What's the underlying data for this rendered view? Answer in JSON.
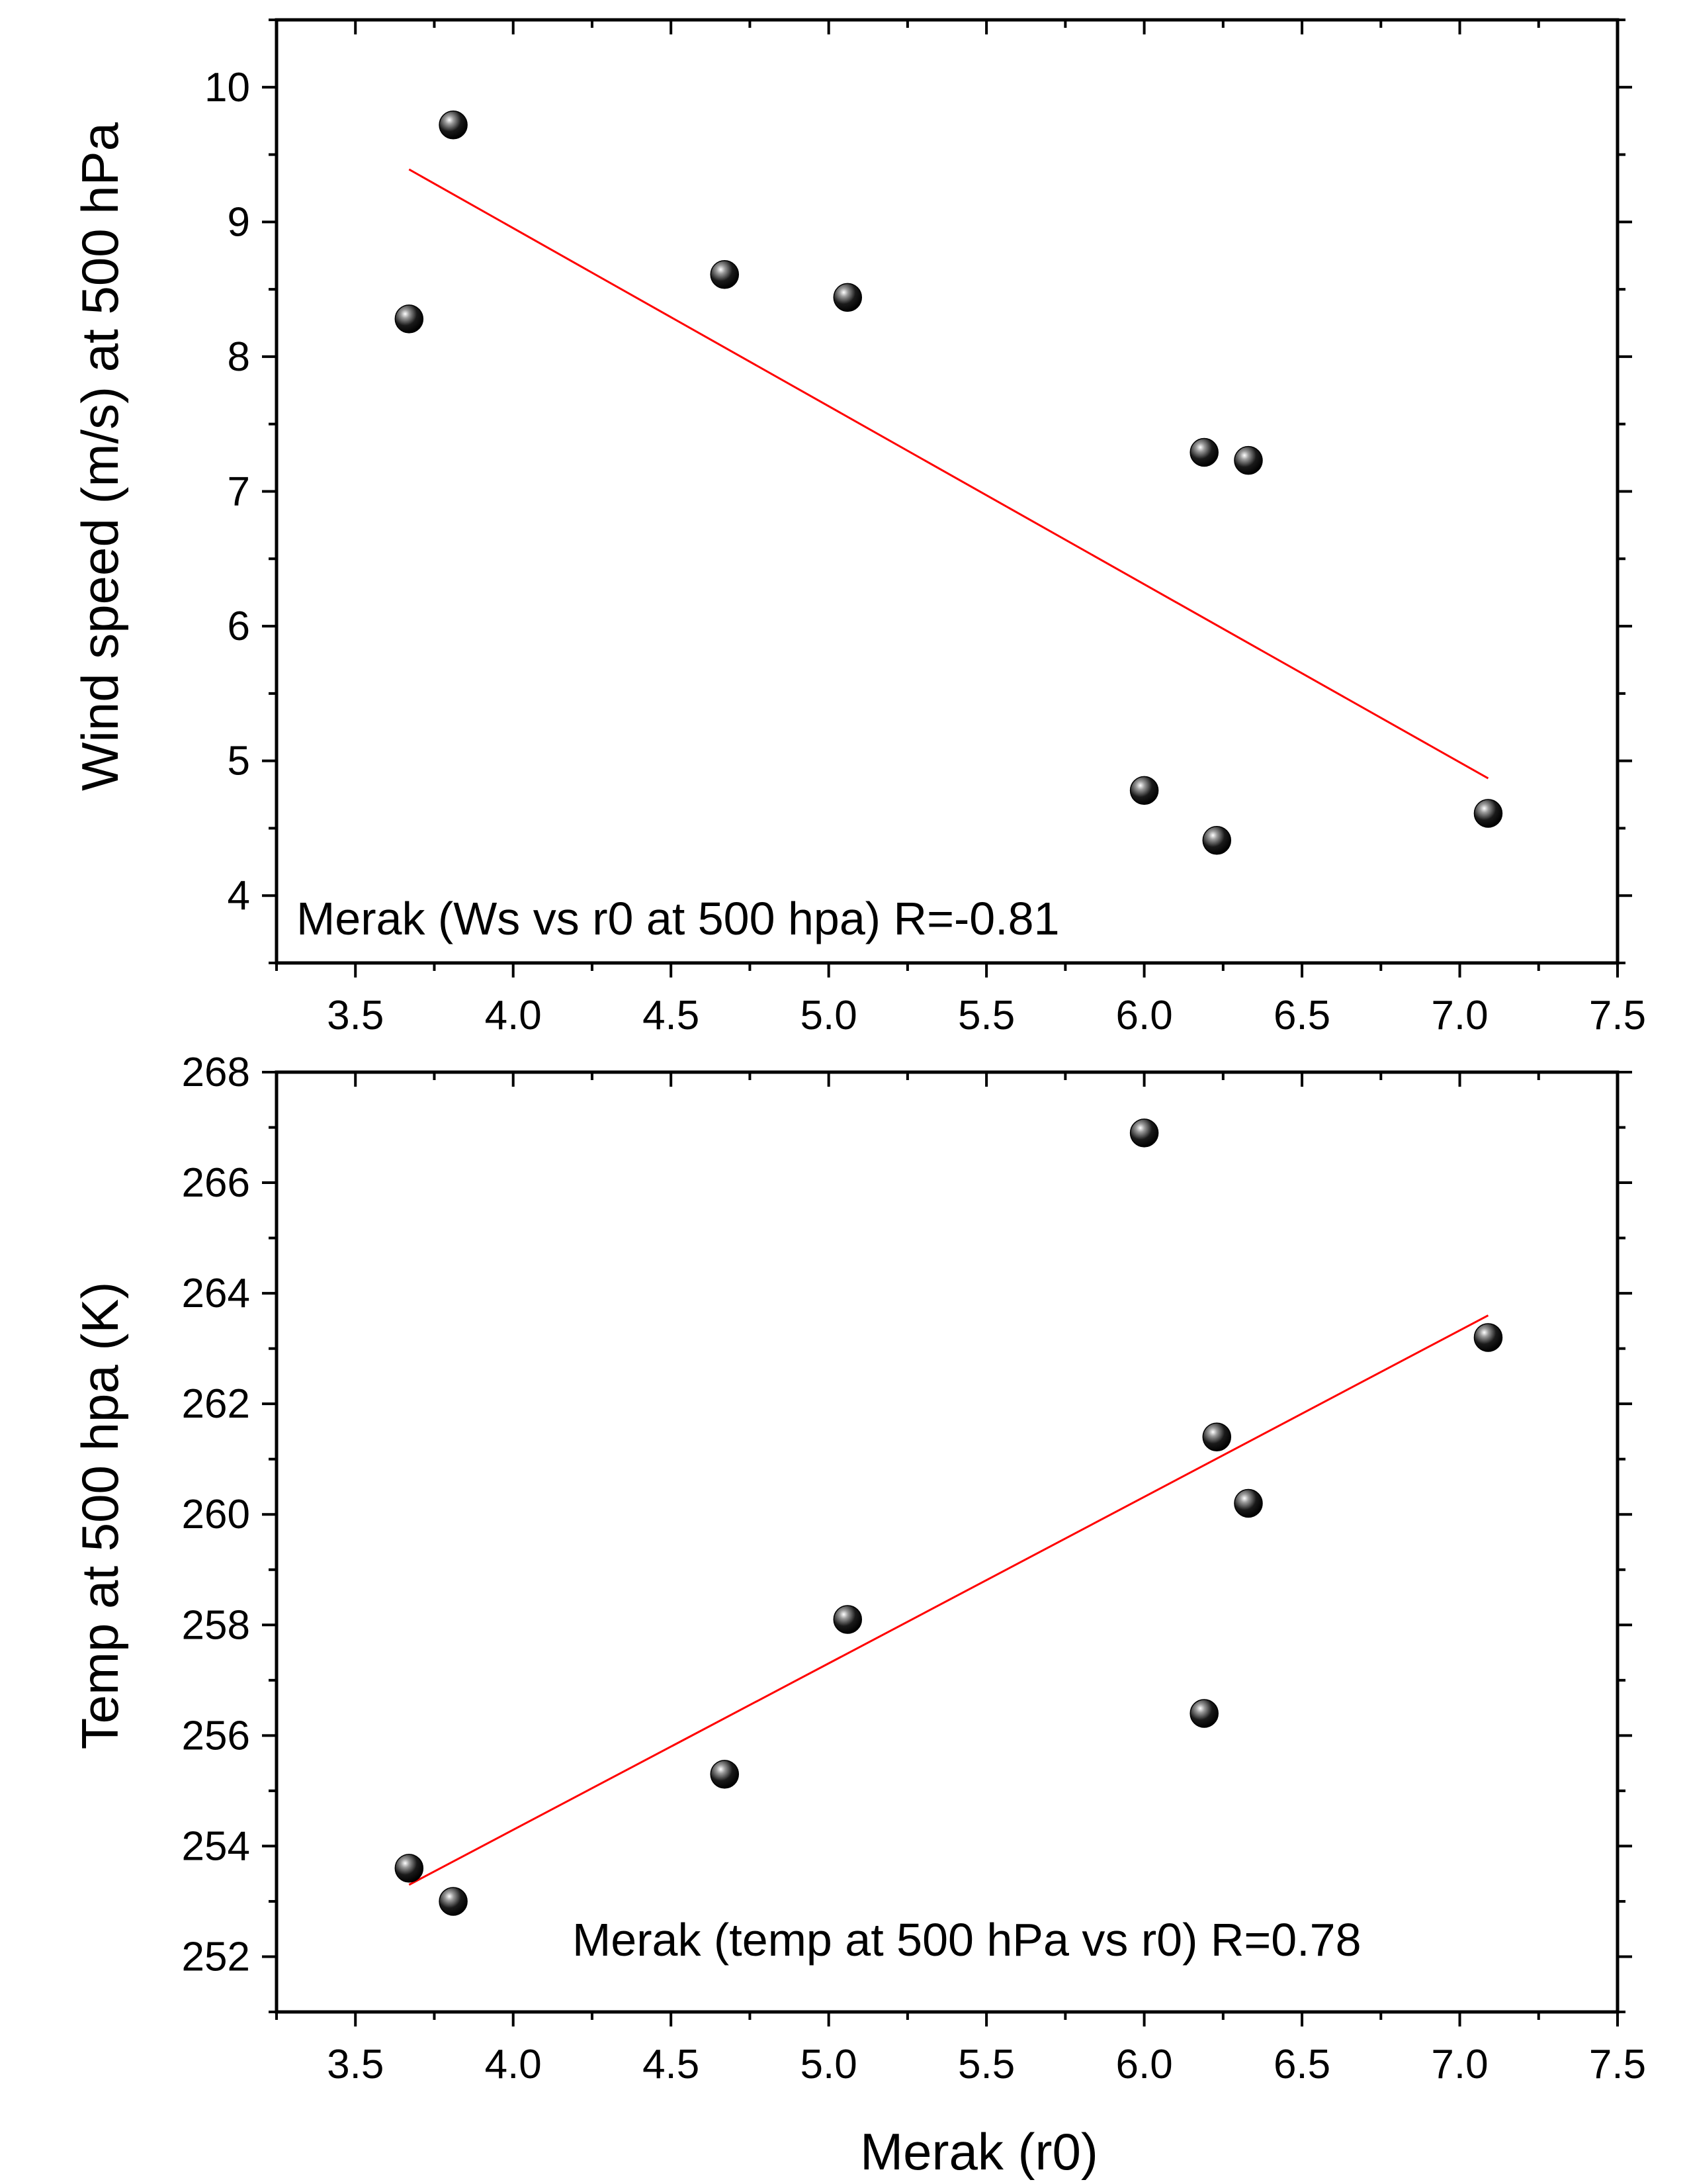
{
  "figure": {
    "colors": {
      "axis": "#000000",
      "fit_line": "#ff0000",
      "marker": "#000000",
      "background": "#ffffff"
    }
  },
  "chart_data": [
    {
      "type": "scatter",
      "title": "",
      "xlabel": "",
      "ylabel": "Wind speed (m/s) at 500 hPa",
      "annotation": "Merak (Ws vs r0 at 500 hpa) R=-0.81",
      "xlim": [
        3.25,
        7.5
      ],
      "ylim": [
        3.5,
        10.5
      ],
      "x_ticks": [
        "3.5",
        "4.0",
        "4.5",
        "5.0",
        "5.5",
        "6.0",
        "6.5",
        "7.0",
        "7.5"
      ],
      "y_ticks": [
        "4",
        "5",
        "6",
        "7",
        "8",
        "9",
        "10"
      ],
      "grid": false,
      "legend": "none",
      "x": [
        3.67,
        3.81,
        4.67,
        5.06,
        6.0,
        6.19,
        6.23,
        6.33,
        7.09
      ],
      "y": [
        8.28,
        9.72,
        8.61,
        8.44,
        4.78,
        7.29,
        4.41,
        7.23,
        4.61
      ],
      "fit_line": {
        "x": [
          3.67,
          7.09
        ],
        "y": [
          9.39,
          4.87
        ]
      }
    },
    {
      "type": "scatter",
      "title": "",
      "xlabel": "Merak (r0)",
      "ylabel": "Temp at 500 hpa (K)",
      "annotation": "Merak (temp at 500 hPa vs r0) R=0.78",
      "xlim": [
        3.25,
        7.5
      ],
      "ylim": [
        251,
        268
      ],
      "x_ticks": [
        "3.5",
        "4.0",
        "4.5",
        "5.0",
        "5.5",
        "6.0",
        "6.5",
        "7.0",
        "7.5"
      ],
      "y_ticks": [
        "252",
        "254",
        "256",
        "258",
        "260",
        "262",
        "264",
        "266",
        "268"
      ],
      "grid": false,
      "legend": "none",
      "x": [
        3.67,
        3.81,
        4.67,
        5.06,
        6.0,
        6.19,
        6.23,
        6.33,
        7.09
      ],
      "y": [
        253.6,
        253.0,
        255.3,
        258.1,
        266.9,
        256.4,
        261.4,
        260.2,
        263.2
      ],
      "fit_line": {
        "x": [
          3.67,
          7.09
        ],
        "y": [
          253.3,
          263.6
        ]
      }
    }
  ]
}
